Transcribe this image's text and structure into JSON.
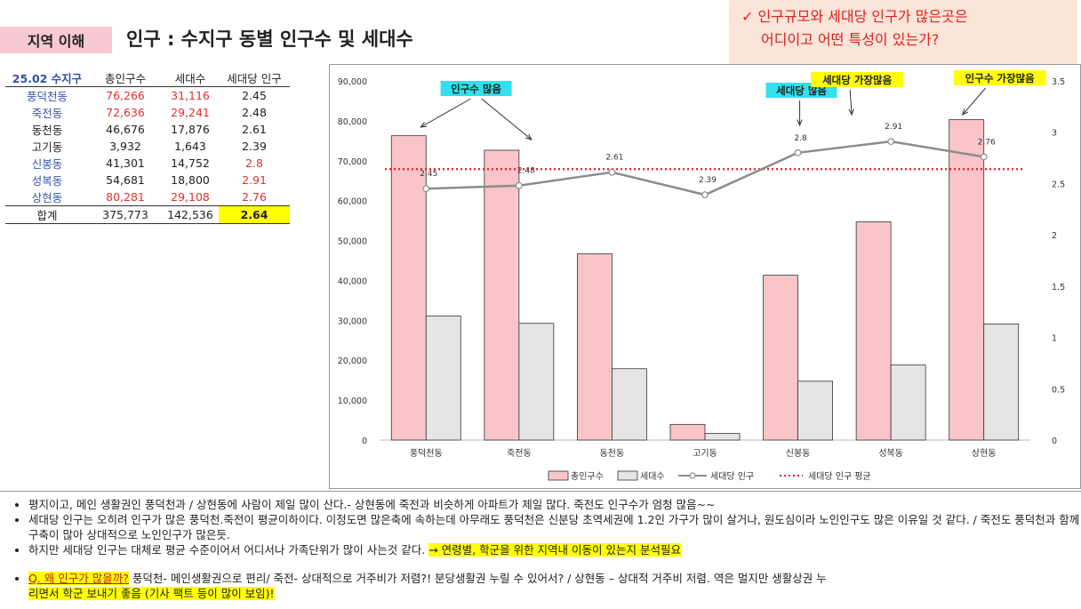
{
  "header": {
    "tag": "지역 이해",
    "title": "인구 : 수지구 동별 인구수 및 세대수"
  },
  "callout": {
    "check": "✓",
    "line1": "인구규모와 세대당 인구가 많은곳은",
    "line2": "어디이고 어떤 특성이 있는가?"
  },
  "table": {
    "headers": [
      "25.02 수지구",
      "총인구수",
      "세대수",
      "세대당 인구"
    ],
    "rows": [
      {
        "name": "풍덕천동",
        "pop": "76,266",
        "hh": "31,116",
        "per": "2.45"
      },
      {
        "name": "죽전동",
        "pop": "72,636",
        "hh": "29,241",
        "per": "2.48"
      },
      {
        "name": "동천동",
        "pop": "46,676",
        "hh": "17,876",
        "per": "2.61"
      },
      {
        "name": "고기동",
        "pop": "3,932",
        "hh": "1,643",
        "per": "2.39"
      },
      {
        "name": "신봉동",
        "pop": "41,301",
        "hh": "14,752",
        "per": "2.8"
      },
      {
        "name": "성복동",
        "pop": "54,681",
        "hh": "18,800",
        "per": "2.91"
      },
      {
        "name": "상현동",
        "pop": "80,281",
        "hh": "29,108",
        "per": "2.76"
      }
    ],
    "total": {
      "name": "합계",
      "pop": "375,773",
      "hh": "142,536",
      "per": "2.64"
    }
  },
  "colors": {
    "pop_bar": "#f9c5c8",
    "hh_bar": "#e5e5e5",
    "line": "#8c8c8c",
    "avg": "#e02020",
    "highlight_cyan": "#33e0ee",
    "highlight_yellow": "#ffff00"
  },
  "chart_data": {
    "type": "bar",
    "categories": [
      "풍덕천동",
      "죽전동",
      "동천동",
      "고기동",
      "신봉동",
      "성복동",
      "상현동"
    ],
    "series": [
      {
        "name": "총인구수",
        "axis": "left",
        "kind": "bar",
        "values": [
          76266,
          72636,
          46676,
          3932,
          41301,
          54681,
          80281
        ]
      },
      {
        "name": "세대수",
        "axis": "left",
        "kind": "bar",
        "values": [
          31116,
          29241,
          17876,
          1643,
          14752,
          18800,
          29108
        ]
      },
      {
        "name": "세대당 인구",
        "axis": "right",
        "kind": "line",
        "values": [
          2.45,
          2.48,
          2.61,
          2.39,
          2.8,
          2.91,
          2.76
        ],
        "data_labels": [
          "2.45",
          "2.48",
          "2.61",
          "2.39",
          "2.8",
          "2.91",
          "2.76"
        ]
      },
      {
        "name": "세대당 인구 평균",
        "axis": "right",
        "kind": "dotted-line",
        "values": [
          2.64,
          2.64,
          2.64,
          2.64,
          2.64,
          2.64,
          2.64
        ]
      }
    ],
    "ylim": [
      0,
      90000
    ],
    "y_ticks": [
      "0",
      "10,000",
      "20,000",
      "30,000",
      "40,000",
      "50,000",
      "60,000",
      "70,000",
      "80,000",
      "90,000"
    ],
    "y2lim": [
      0,
      3.5
    ],
    "y2_ticks": [
      "0",
      "0.5",
      "1",
      "1.5",
      "2",
      "2.5",
      "3",
      "3.5"
    ],
    "legend_position": "bottom",
    "annotations": [
      {
        "text": "인구수 많음",
        "style": "cyan",
        "targets": [
          0,
          1
        ]
      },
      {
        "text": "세대당 많음",
        "style": "cyan",
        "targets": [
          4
        ]
      },
      {
        "text": "세대당 가장많음",
        "style": "yellow",
        "targets": [
          5
        ]
      },
      {
        "text": "인구수 가장많음",
        "style": "yellow",
        "targets": [
          6
        ]
      }
    ]
  },
  "notes": {
    "b1": "평지이고, 메인 생활권인 풍덕천과 / 상현동에 사람이 제일 많이 산다.- 상현동에 죽전과 비슷하게 아파트가 제일 많다. 죽전도 인구수가 엄청 많음~~",
    "b2": "세대당 인구는 오히려 인구가 많은 풍덕천.죽전이 평균이하이다. 이정도면 많은축에 속하는데 아무래도 풍덕천은 신분당 초역세권에 1.2인 가구가 많이 살거나, 원도심이라 노인인구도 많은 이유일 것 같다. / 죽전도 풍덕천과 함께 구축이 많아 상대적으로 노인인구가 많은듯.",
    "b3a": "하지만 세대당 인구는 대체로 평균 수준이어서 어디서나 가족단위가 많이 사는것 같다.",
    "b3b": "→ 연령별, 학군을 위한 지역내 이동이 있는지 분석필요",
    "b4a": "Q. 왜 인구가 많을까?",
    "b4b": "풍덕천- 메인생활권으로 편리/ 죽전- 상대적으로 거주비가 저렴?! 분당생활권 누릴 수 있어서? / 상현동 – 상대적 거주비 저렴. 역은 멀지만 생활상권 누",
    "b4c": "리면서 학군 보내기 좋음 (기사 팩트 등이 많이 보임)!"
  }
}
